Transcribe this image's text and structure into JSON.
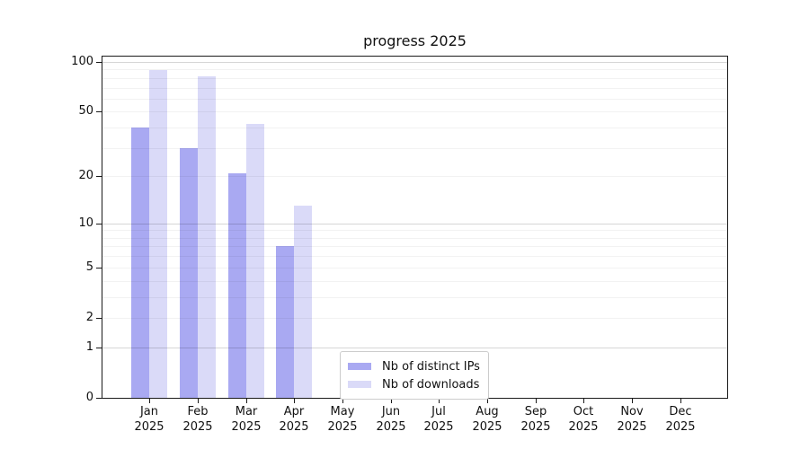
{
  "chart_data": {
    "type": "bar",
    "title": "progress 2025",
    "categories": [
      "Jan",
      "Feb",
      "Mar",
      "Apr",
      "May",
      "Jun",
      "Jul",
      "Aug",
      "Sep",
      "Oct",
      "Nov",
      "Dec"
    ],
    "year_label": "2025",
    "series": [
      {
        "name": "Nb of distinct IPs",
        "color": "#a9a9f2",
        "values": [
          40,
          30,
          21,
          7,
          0,
          0,
          0,
          0,
          0,
          0,
          0,
          0
        ]
      },
      {
        "name": "Nb of downloads",
        "color": "#dadaf8",
        "values": [
          89,
          82,
          42,
          13,
          0,
          0,
          0,
          0,
          0,
          0,
          0,
          0
        ]
      }
    ],
    "yscale": "log1p",
    "ylabel": "",
    "xlabel": "",
    "yticks": [
      0,
      1,
      2,
      5,
      10,
      20,
      50,
      100
    ],
    "ylim": [
      0,
      108
    ],
    "grid": {
      "major_values": [
        1,
        10,
        100
      ],
      "minor_values": [
        2,
        3,
        4,
        5,
        6,
        7,
        8,
        9,
        20,
        30,
        40,
        50,
        60,
        70,
        80,
        90
      ]
    },
    "legend_position": "lower-center-left"
  }
}
